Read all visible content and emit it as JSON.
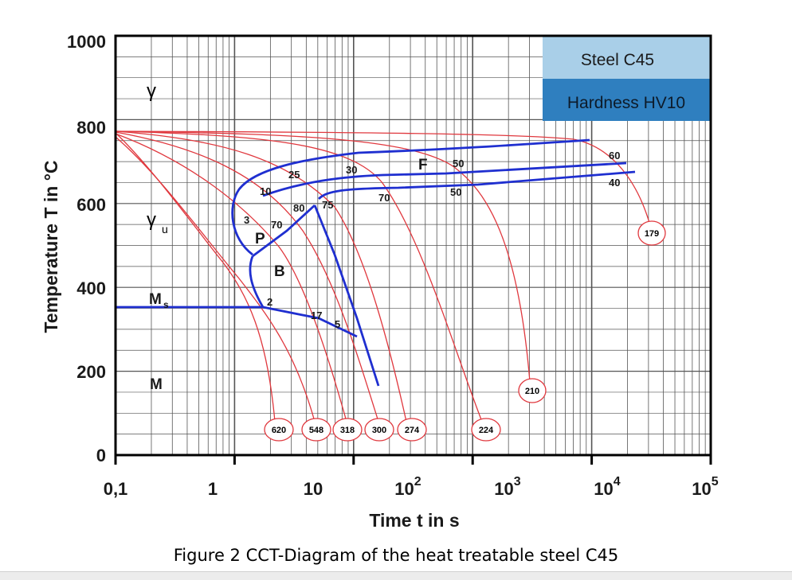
{
  "figure": {
    "caption": "Figure 2 CCT-Diagram of the heat treatable steel C45",
    "xlabel": "Time t in s",
    "ylabel": "Temperature T in °C",
    "y_ticks": [
      "0",
      "200",
      "400",
      "600",
      "800",
      "1000"
    ],
    "x_ticks": [
      {
        "base": "0,1",
        "exp": ""
      },
      {
        "base": "1",
        "exp": ""
      },
      {
        "base": "10",
        "exp": ""
      },
      {
        "base": "10",
        "exp": "2"
      },
      {
        "base": "10",
        "exp": "3"
      },
      {
        "base": "10",
        "exp": "4"
      },
      {
        "base": "10",
        "exp": "5"
      }
    ],
    "legend": {
      "steel": "Steel C45",
      "hardness": "Hardness HV10",
      "steel_color": "#a9cfe8",
      "hardness_color": "#2f7fbf"
    },
    "phase_labels": {
      "gamma": "γ",
      "gamma_u": "γ",
      "gamma_u_sub": "u",
      "ms": "M",
      "ms_sub": "s",
      "m": "M",
      "p": "P",
      "b": "B",
      "f": "F"
    },
    "percent_labels": [
      "25",
      "30",
      "50",
      "60",
      "10",
      "40",
      "80",
      "75",
      "70",
      "50",
      "3",
      "70",
      "2",
      "17",
      "5"
    ],
    "hardness_values": [
      "620",
      "548",
      "318",
      "300",
      "274",
      "224",
      "210",
      "179"
    ],
    "colors": {
      "cooling_curves": "#e0383e",
      "transformation_lines": "#1f2fd0",
      "grid": "#555555",
      "axes": "#000000"
    }
  }
}
